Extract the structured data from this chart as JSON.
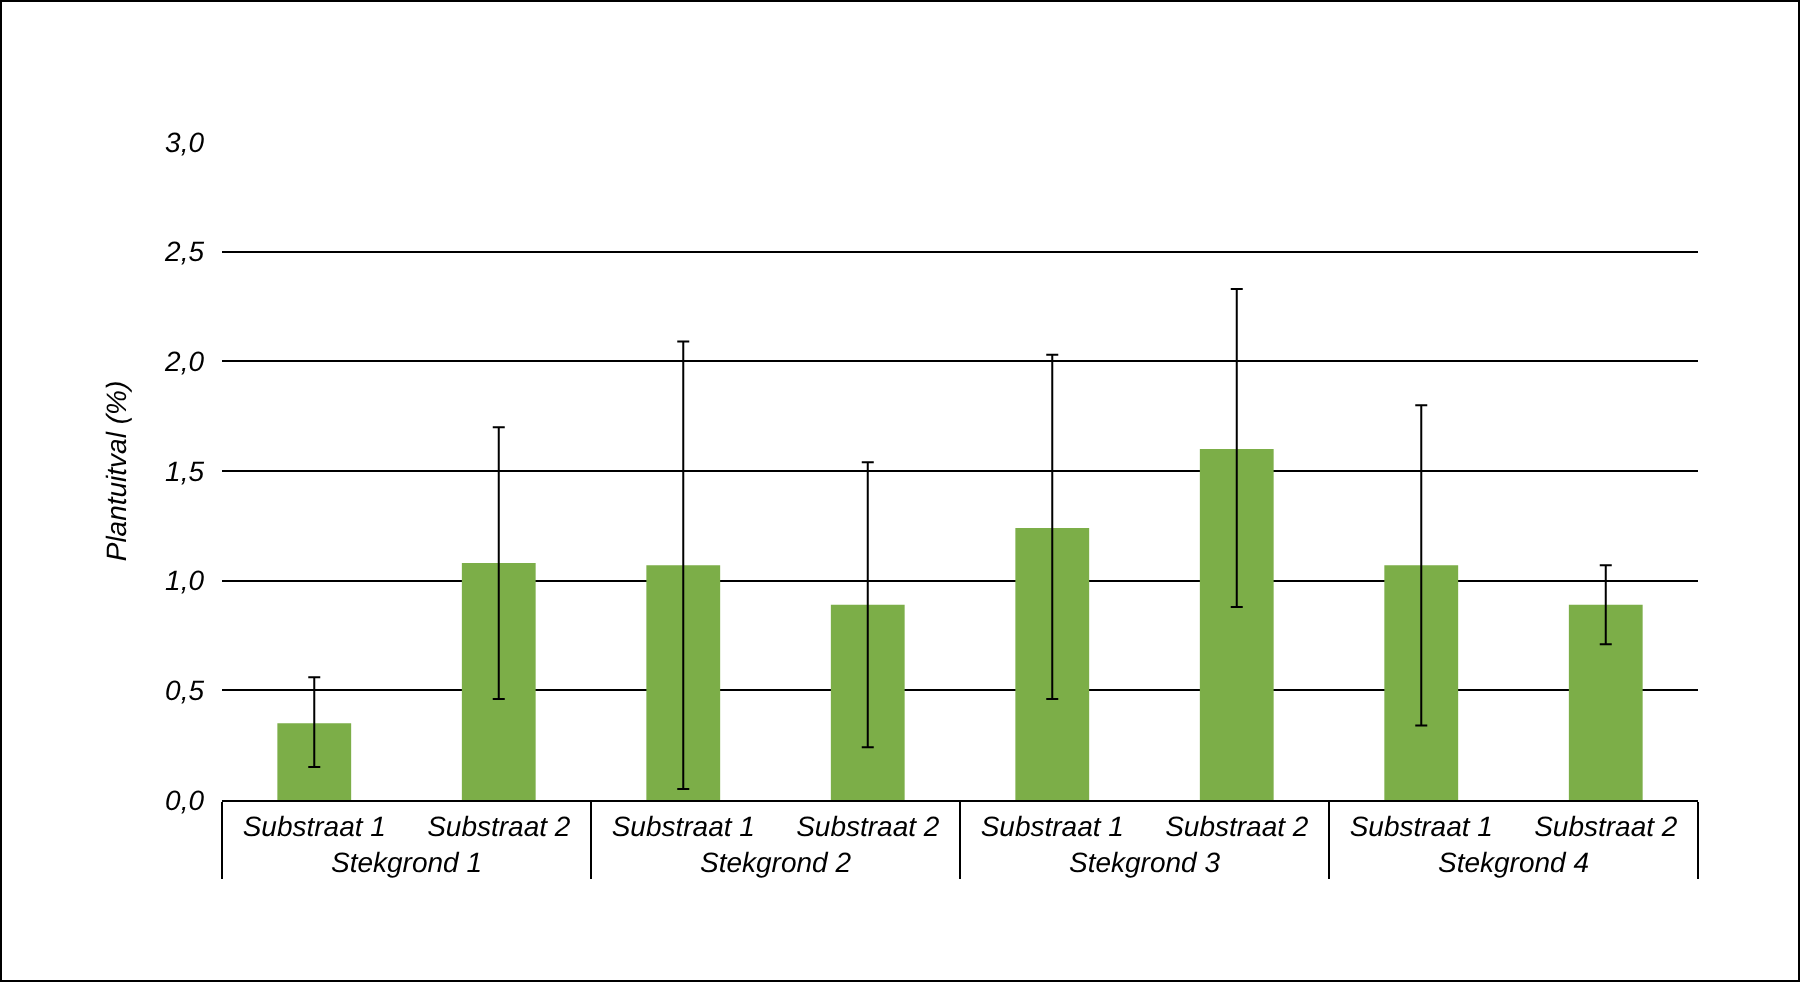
{
  "chart_data": {
    "type": "bar",
    "ylabel": "Plantuitval (%)",
    "categories": [
      "Substraat 1",
      "Substraat 2",
      "Substraat 1",
      "Substraat 2",
      "Substraat 1",
      "Substraat 2",
      "Substraat 1",
      "Substraat 2"
    ],
    "annotations": [
      "Stekgrond 1",
      "Stekgrond 2",
      "Stekgrond 3",
      "Stekgrond 4"
    ],
    "values": [
      0.35,
      1.08,
      1.07,
      0.89,
      1.24,
      1.6,
      1.07,
      0.89
    ],
    "errors": [
      [
        0.15,
        0.56
      ],
      [
        0.46,
        1.7
      ],
      [
        0.05,
        2.09
      ],
      [
        0.24,
        1.54
      ],
      [
        0.46,
        2.03
      ],
      [
        0.88,
        2.33
      ],
      [
        0.34,
        1.8
      ],
      [
        0.71,
        1.07
      ]
    ],
    "color": "#7cae48",
    "ylim": [
      0,
      3
    ],
    "yticks": [
      {
        "value": 0,
        "label": "0,0"
      },
      {
        "value": 0.5,
        "label": "0,5"
      },
      {
        "value": 1,
        "label": "1,0"
      },
      {
        "value": 1.5,
        "label": "1,5"
      },
      {
        "value": 2,
        "label": "2,0"
      },
      {
        "value": 2.5,
        "label": "2,5"
      },
      {
        "value": 3,
        "label": "3,0"
      }
    ],
    "grid": "y"
  }
}
